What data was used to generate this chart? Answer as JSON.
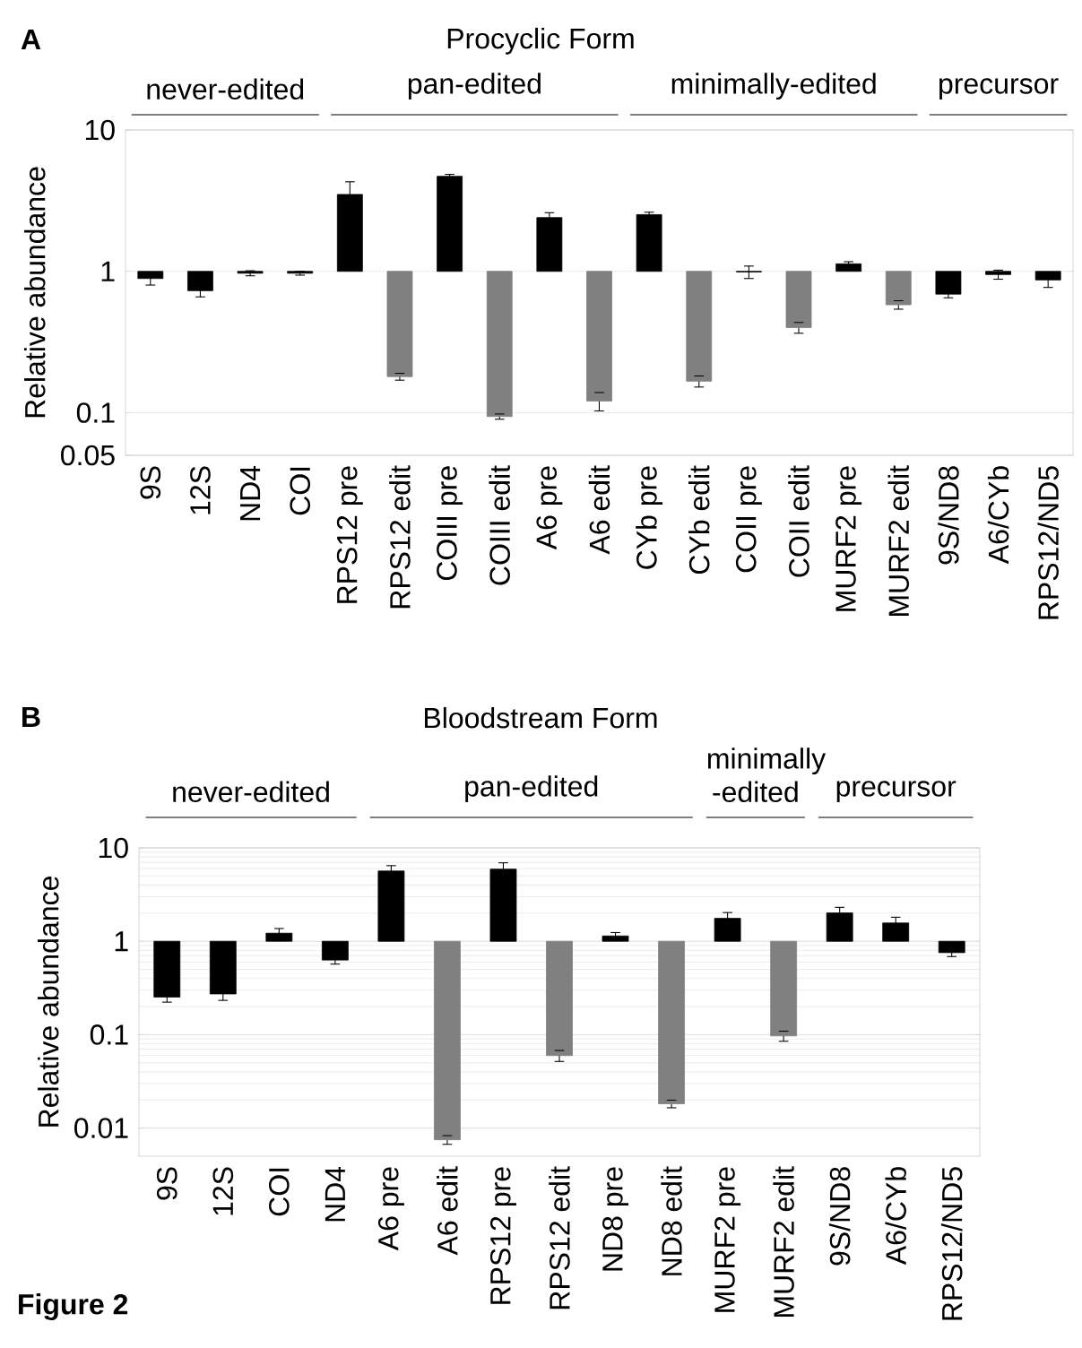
{
  "chart_data": [
    {
      "type": "bar",
      "title": "Procyclic Form",
      "ylabel": "Relative abundance",
      "log": true,
      "categories": [
        "9S",
        "12S",
        "ND4",
        "COI",
        "RPS12 pre",
        "RPS12 edit",
        "COIII pre",
        "COIII edit",
        "A6 pre",
        "A6 edit",
        "CYb pre",
        "CYb edit",
        "COII pre",
        "COII edit",
        "MURF2 pre",
        "MURF2 edit",
        "9S/ND8",
        "A6/CYb",
        "RPS12/ND5"
      ],
      "base": [
        1,
        1,
        1,
        1,
        1,
        1,
        1,
        1,
        1,
        1,
        1,
        1,
        1,
        1,
        1,
        1,
        1,
        1,
        1
      ],
      "values": [
        -0.11,
        -0.27,
        -0.03,
        -0.03,
        2.5,
        -0.82,
        3.7,
        -0.906,
        1.4,
        -0.879,
        1.52,
        -0.833,
        -0.01,
        -0.6,
        0.13,
        -0.42,
        -0.31,
        -0.05,
        -0.13
      ],
      "errors": [
        0.09,
        0.07,
        0.04,
        0.03,
        0.8,
        0.01,
        0.15,
        0.004,
        0.2,
        0.018,
        0.1,
        0.015,
        0.1,
        0.035,
        0.04,
        0.04,
        0.04,
        0.07,
        0.1
      ],
      "colors": [
        "#000000",
        "#000000",
        "#000000",
        "#000000",
        "#000000",
        "#808080",
        "#000000",
        "#808080",
        "#000000",
        "#808080",
        "#000000",
        "#808080",
        "#000000",
        "#808080",
        "#000000",
        "#808080",
        "#000000",
        "#000000",
        "#000000"
      ],
      "ylim": [
        0.05,
        10
      ],
      "yticks": [
        0.05,
        0.1,
        1,
        10
      ],
      "grid": "y",
      "annotations": [
        "**A**",
        "never-edited",
        "pan-edited",
        "minimally-edited",
        "precursor"
      ]
    },
    {
      "type": "bar",
      "title": "Bloodstream Form",
      "ylabel": "Relative abundance",
      "log": true,
      "categories": [
        "9S",
        "12S",
        "COI",
        "ND4",
        "A6 pre",
        "A6 edit",
        "RPS12 pre",
        "RPS12 edit",
        "ND8 pre",
        "ND8 edit",
        "MURF2 pre",
        "MURF2 edit",
        "9S/ND8",
        "A6/CYb",
        "RPS12/ND5"
      ],
      "base": [
        1,
        1,
        1,
        1,
        1,
        1,
        1,
        1,
        1,
        1,
        1,
        1,
        1,
        1,
        1
      ],
      "values": [
        -0.747,
        -0.727,
        0.22,
        -0.37,
        4.65,
        -0.9925,
        4.92,
        -0.9403,
        0.14,
        -0.9818,
        0.76,
        -0.903,
        1.01,
        0.57,
        -0.244
      ],
      "errors": [
        0.03,
        0.04,
        0.15,
        0.06,
        0.8,
        0.0008,
        1.0,
        0.008,
        0.1,
        0.0017,
        0.27,
        0.012,
        0.3,
        0.24,
        0.07
      ],
      "colors": [
        "#000000",
        "#000000",
        "#000000",
        "#000000",
        "#000000",
        "#808080",
        "#000000",
        "#808080",
        "#000000",
        "#808080",
        "#000000",
        "#808080",
        "#000000",
        "#000000",
        "#000000"
      ],
      "ylim": [
        0.005,
        10
      ],
      "yticks": [
        0.01,
        0.1,
        1,
        10
      ],
      "grid": "y",
      "annotations": [
        "**B**",
        "never-edited",
        "pan-edited",
        "minimally -edited",
        "precursor",
        "**Figure 2**"
      ]
    }
  ]
}
